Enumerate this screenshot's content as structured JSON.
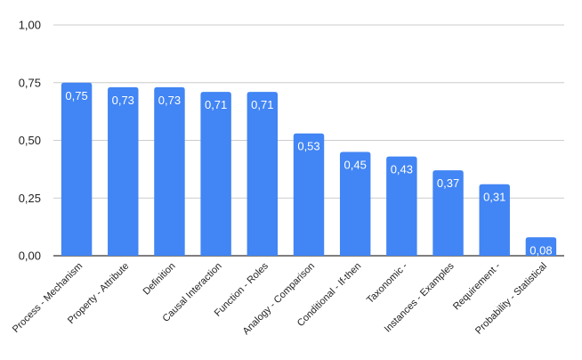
{
  "chart_data": {
    "type": "bar",
    "title": "",
    "xlabel": "",
    "ylabel": "",
    "ylim": [
      0,
      1
    ],
    "y_ticks": [
      "0,00",
      "0,25",
      "0,50",
      "0,75",
      "1,00"
    ],
    "y_tick_values": [
      0,
      0.25,
      0.5,
      0.75,
      1.0
    ],
    "grid": true,
    "legend": "none",
    "bar_color": "#4285F4",
    "gridline_color": "#CCCCCC",
    "label_color": "#FFFFFF",
    "categories": [
      "Process - Mechanism",
      "Property - Attribute",
      "Definition",
      "Causal Interaction",
      "Function - Roles",
      "Analogy - Comparison",
      "Conditional - If-then",
      "Taxonomic -",
      "Instances - Examples",
      "Requirement -",
      "Probability - Statistical"
    ],
    "values": [
      0.75,
      0.73,
      0.73,
      0.71,
      0.71,
      0.53,
      0.45,
      0.43,
      0.37,
      0.31,
      0.08
    ],
    "value_labels": [
      "0,75",
      "0,73",
      "0,73",
      "0,71",
      "0,71",
      "0,53",
      "0,45",
      "0,43",
      "0,37",
      "0,31",
      "0,08"
    ]
  }
}
